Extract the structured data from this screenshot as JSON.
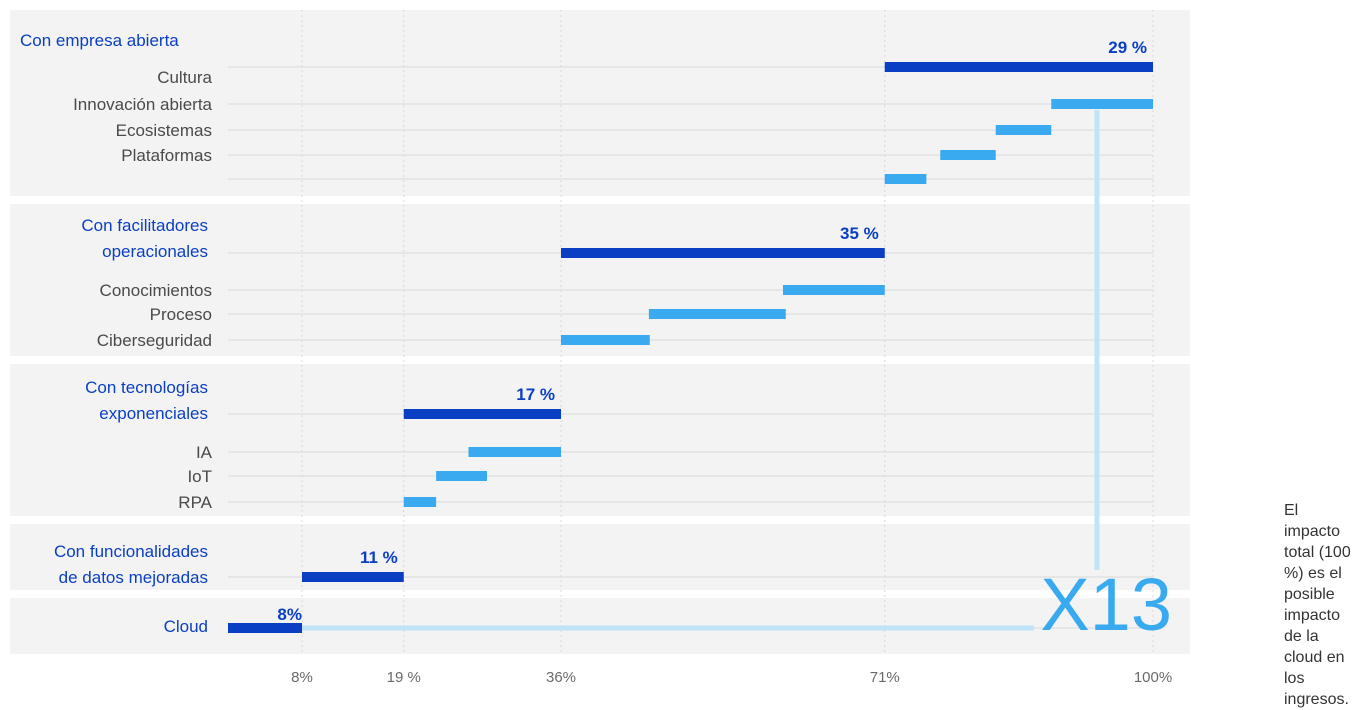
{
  "colors": {
    "band_bg": "#f3f3f3",
    "subtotal_bar": "#0a3fc4",
    "item_bar": "#3aaaf0",
    "connector": "#bfe3f7",
    "grid": "#d8d8d8"
  },
  "chart_data": {
    "type": "bar",
    "orientation": "horizontal-waterfall",
    "xlim": [
      0,
      100
    ],
    "x_ticks": [
      {
        "value": 8,
        "label": "8%"
      },
      {
        "value": 19,
        "label": "19 %"
      },
      {
        "value": 36,
        "label": "36%"
      },
      {
        "value": 71,
        "label": "71%"
      },
      {
        "value": 100,
        "label": "100%"
      }
    ],
    "groups": [
      {
        "title": [
          "Con empresa abierta"
        ],
        "subtotal": {
          "start": 71,
          "end": 100,
          "label": "29 %"
        },
        "items": [
          {
            "label": "Cultura",
            "start": 71,
            "end": 100,
            "kind": "subtotal"
          },
          {
            "label": "Innovación abierta",
            "start": 89,
            "end": 100
          },
          {
            "label": "Ecosistemas",
            "start": 83,
            "end": 89
          },
          {
            "label": "Plataformas",
            "start": 77,
            "end": 83
          },
          {
            "label": "",
            "start": 71,
            "end": 75.5
          }
        ]
      },
      {
        "title": [
          "Con facilitadores",
          "operacionales"
        ],
        "subtotal": {
          "start": 36,
          "end": 71,
          "label": "35 %"
        },
        "items": [
          {
            "label": "Conocimientos",
            "start": 60,
            "end": 71
          },
          {
            "label": "Proceso",
            "start": 45.5,
            "end": 60.3
          },
          {
            "label": "Ciberseguridad",
            "start": 36,
            "end": 45.6
          }
        ]
      },
      {
        "title": [
          "Con tecnologías",
          "exponenciales"
        ],
        "subtotal": {
          "start": 19,
          "end": 36,
          "label": "17 %"
        },
        "items": [
          {
            "label": "IA",
            "start": 26,
            "end": 36
          },
          {
            "label": "IoT",
            "start": 22.5,
            "end": 28
          },
          {
            "label": "RPA",
            "start": 19,
            "end": 22.5
          }
        ]
      },
      {
        "title": [
          "Con funcionalidades",
          "de datos mejoradas"
        ],
        "subtotal": {
          "start": 8,
          "end": 19,
          "label": "11 %"
        },
        "items": []
      },
      {
        "title": [
          "Cloud"
        ],
        "subtotal": {
          "start": 0,
          "end": 8,
          "label": "8%"
        },
        "items": []
      }
    ],
    "annotation": {
      "text": "X13"
    },
    "note": "El impacto total (100 %) es el posible impacto de la cloud en los ingresos."
  }
}
